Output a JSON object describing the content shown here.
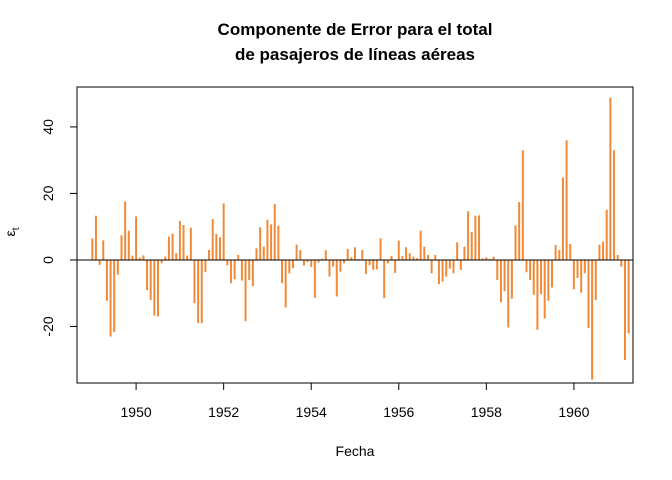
{
  "chart_data": {
    "type": "bar",
    "title_line1": "Componente de Error para el total",
    "title_line2": "de pasajeros de líneas aéreas",
    "xlabel": "Fecha",
    "ylabel_main": "ε",
    "ylabel_sub": "t",
    "xlim": [
      1948.65,
      1961.35
    ],
    "ylim": [
      -37,
      52
    ],
    "x_ticks": [
      1950,
      1952,
      1954,
      1956,
      1958,
      1960
    ],
    "y_ticks": [
      -20,
      0,
      20,
      40
    ],
    "x_tick_labels": [
      "1950",
      "1952",
      "1954",
      "1956",
      "1958",
      "1960"
    ],
    "y_tick_labels": [
      "-20",
      "0",
      "20",
      "40"
    ],
    "bar_color": "#F08A38",
    "baseline": 0,
    "start": 1949.0,
    "frequency": 12,
    "values": [
      6.5,
      13.3,
      -1.5,
      5.9,
      -12.3,
      -23.0,
      -21.7,
      -4.4,
      7.4,
      17.6,
      8.8,
      1.3,
      13.1,
      0.7,
      1.4,
      -9.1,
      -12.0,
      -16.7,
      -17.0,
      -1.0,
      1.0,
      7.0,
      7.9,
      2.0,
      11.7,
      10.5,
      1.3,
      9.7,
      -13.0,
      -19.0,
      -19.0,
      -3.6,
      3.0,
      12.3,
      7.8,
      6.8,
      17.0,
      -1.6,
      -7.0,
      -5.8,
      1.5,
      -6.2,
      -18.4,
      -6.0,
      -7.9,
      3.5,
      9.8,
      4.0,
      12.1,
      10.7,
      16.8,
      10.3,
      -7.0,
      -14.3,
      -4.0,
      -2.5,
      4.6,
      3.0,
      -1.7,
      -0.6,
      -2.1,
      -11.4,
      -0.8,
      0.4,
      2.9,
      -5.0,
      -2.0,
      -11.0,
      -3.5,
      -1.0,
      3.3,
      0.8,
      3.8,
      0.3,
      3.0,
      -4.2,
      -1.6,
      -3.0,
      -2.8,
      6.5,
      -11.5,
      -1.0,
      1.2,
      -3.9,
      5.8,
      1.2,
      3.8,
      2.0,
      1.0,
      0.5,
      8.8,
      4.0,
      1.5,
      -4.0,
      1.5,
      -7.3,
      -6.5,
      -5.0,
      -2.6,
      -4.0,
      5.3,
      -3.0,
      4.0,
      14.6,
      8.4,
      13.3,
      13.4,
      0.5,
      0.8,
      0.3,
      1.0,
      -6.0,
      -12.7,
      -9.4,
      -20.3,
      -11.7,
      10.4,
      17.4,
      33.0,
      -3.7,
      -6.0,
      -10.5,
      -21.0,
      -10.3,
      -17.6,
      -12.3,
      -8.3,
      4.5,
      3.0,
      24.8,
      36.0,
      4.8,
      -8.8,
      -5.4,
      -9.9,
      -4.0,
      -20.5,
      -36.0,
      -12.0,
      4.6,
      5.5,
      15.1,
      48.8,
      33.0,
      1.5,
      -2.0,
      -30.1,
      -22.1
    ]
  }
}
